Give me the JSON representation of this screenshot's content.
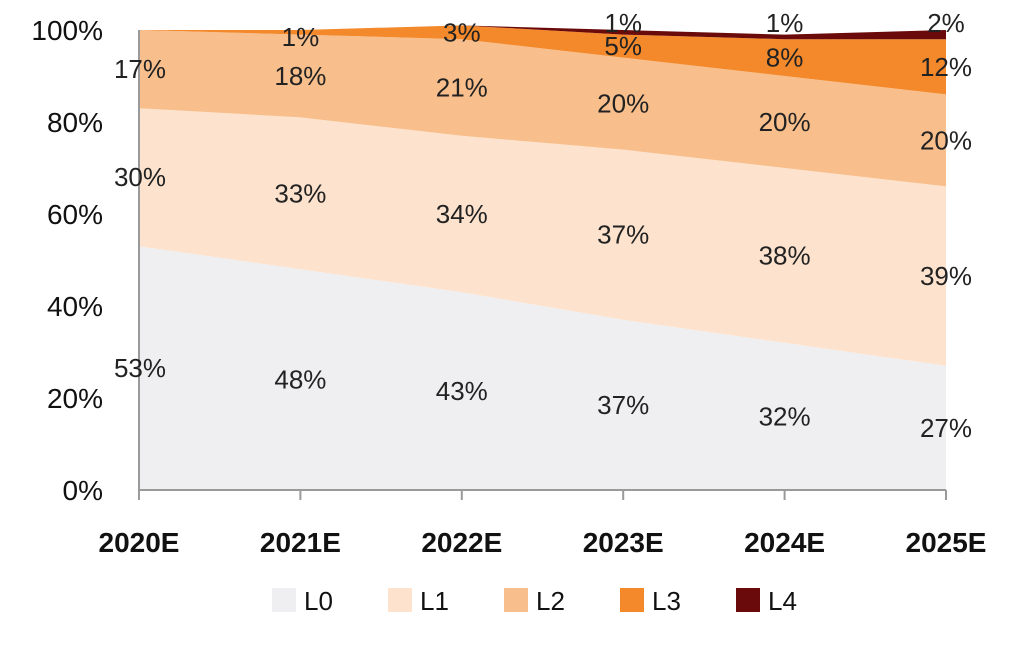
{
  "chart_data": {
    "type": "area",
    "stacked": true,
    "percent": true,
    "categories": [
      "2020E",
      "2021E",
      "2022E",
      "2023E",
      "2024E",
      "2025E"
    ],
    "ylim": [
      0,
      100
    ],
    "yticks": [
      "0%",
      "20%",
      "40%",
      "60%",
      "80%",
      "100%"
    ],
    "grid": false,
    "legend_position": "bottom",
    "series": [
      {
        "name": "L0",
        "color": "#efeff1",
        "values": [
          53,
          48,
          43,
          37,
          32,
          27
        ],
        "labels": [
          "53%",
          "48%",
          "43%",
          "37%",
          "32%",
          "27%"
        ]
      },
      {
        "name": "L1",
        "color": "#fde3cd",
        "values": [
          30,
          33,
          34,
          37,
          38,
          39
        ],
        "labels": [
          "30%",
          "33%",
          "34%",
          "37%",
          "38%",
          "39%"
        ]
      },
      {
        "name": "L2",
        "color": "#f8bf8c",
        "values": [
          17,
          18,
          21,
          20,
          20,
          20
        ],
        "labels": [
          "17%",
          "18%",
          "21%",
          "20%",
          "20%",
          "20%"
        ]
      },
      {
        "name": "L3",
        "color": "#f3892b",
        "values": [
          0,
          1,
          3,
          5,
          8,
          12
        ],
        "labels": [
          "",
          "1%",
          "3%",
          "5%",
          "8%",
          "12%"
        ]
      },
      {
        "name": "L4",
        "color": "#6b0a0a",
        "values": [
          0,
          0,
          0,
          1,
          1,
          2
        ],
        "labels": [
          "",
          "",
          "",
          "1%",
          "1%",
          "2%"
        ]
      }
    ]
  }
}
